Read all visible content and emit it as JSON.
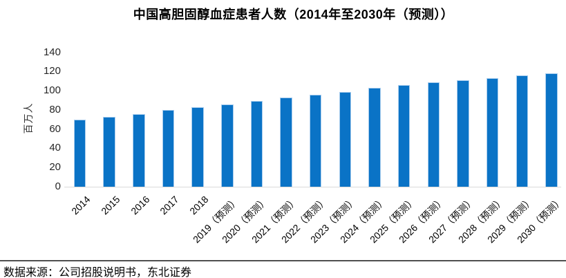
{
  "page": {
    "source_note": "数据来源：公司招股说明书，东北证券"
  },
  "chart_data": {
    "type": "bar",
    "title": "中国高胆固醇血症患者人数（2014年至2030年（预测））",
    "xlabel": "",
    "ylabel": "百万人",
    "categories": [
      "2014",
      "2015",
      "2016",
      "2017",
      "2018",
      "2019（预测）",
      "2020（预测）",
      "2021（预测）",
      "2022（预测）",
      "2023（预测）",
      "2024（预测）",
      "2025（预测）",
      "2026（预测）",
      "2027（预测）",
      "2028（预测）",
      "2029（预测）",
      "2030（预测）"
    ],
    "values": [
      70,
      73,
      76,
      80,
      83,
      86,
      89,
      93,
      96,
      99,
      103,
      106,
      109,
      111,
      113,
      116,
      118
    ],
    "ylim": [
      0,
      140
    ],
    "yticks": [
      0,
      20,
      40,
      60,
      80,
      100,
      120,
      140
    ],
    "grid": false,
    "legend_position": "none",
    "x_tick_rotation": 45,
    "bar_color": "#0a73c6",
    "bar_edge_color": "#a9cdee",
    "axis_line_color": "#d9d9d9"
  },
  "footer": {
    "divider_color": "#4f4f4f"
  }
}
